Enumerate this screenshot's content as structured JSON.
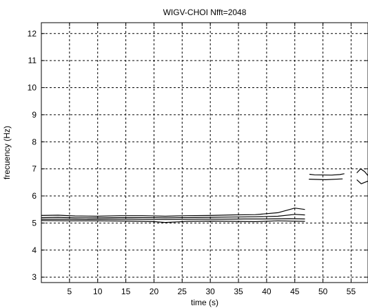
{
  "chart_data": {
    "type": "contour",
    "title": "WIGV-CHOI Nfft=2048",
    "xlabel": "time (s)",
    "ylabel": "frecuency (Hz)",
    "xlim": [
      0,
      58
    ],
    "ylim": [
      2.8,
      12.4
    ],
    "xticks": [
      5,
      10,
      15,
      20,
      25,
      30,
      35,
      40,
      45,
      50,
      55
    ],
    "yticks": [
      3,
      4,
      5,
      6,
      7,
      8,
      9,
      10,
      11,
      12
    ],
    "grid": true,
    "grid_style": "dashed",
    "line_color": "#000000",
    "series": [
      {
        "x": [
          0,
          3,
          6,
          10,
          14,
          18,
          22,
          26,
          30,
          34,
          38,
          42,
          45,
          46.8
        ],
        "y": [
          5.28,
          5.29,
          5.26,
          5.25,
          5.27,
          5.27,
          5.25,
          5.27,
          5.28,
          5.3,
          5.31,
          5.38,
          5.55,
          5.5
        ]
      },
      {
        "x": [
          0,
          3,
          6,
          10,
          14,
          18,
          22,
          26,
          30,
          34,
          38,
          42,
          45,
          46.8
        ],
        "y": [
          5.2,
          5.21,
          5.19,
          5.19,
          5.2,
          5.2,
          5.19,
          5.2,
          5.21,
          5.22,
          5.23,
          5.25,
          5.32,
          5.3
        ]
      },
      {
        "x": [
          0,
          4,
          8,
          12,
          16,
          20,
          24,
          28,
          32,
          36,
          40,
          44,
          46.8
        ],
        "y": [
          5.14,
          5.14,
          5.13,
          5.14,
          5.14,
          5.13,
          5.13,
          5.14,
          5.14,
          5.15,
          5.15,
          5.16,
          5.15
        ]
      },
      {
        "x": [
          0,
          5,
          10,
          16,
          20,
          22,
          24,
          26,
          30,
          34,
          38,
          42,
          46.8
        ],
        "y": [
          5.09,
          5.08,
          5.08,
          5.07,
          5.05,
          5.02,
          5.04,
          5.06,
          5.07,
          5.06,
          5.05,
          5.08,
          5.06
        ]
      },
      {
        "x": [
          47.5,
          50.5,
          53.5
        ],
        "y": [
          6.62,
          6.6,
          6.63
        ]
      },
      {
        "x": [
          47.6,
          48.5,
          51.5,
          53,
          53.8
        ],
        "y": [
          6.8,
          6.78,
          6.77,
          6.79,
          6.82
        ]
      },
      {
        "x": [
          56,
          56.7,
          57.4,
          58
        ],
        "y": [
          6.85,
          7.0,
          6.9,
          6.75
        ]
      },
      {
        "x": [
          56,
          56.8,
          58
        ],
        "y": [
          6.6,
          6.45,
          6.55
        ]
      }
    ]
  }
}
